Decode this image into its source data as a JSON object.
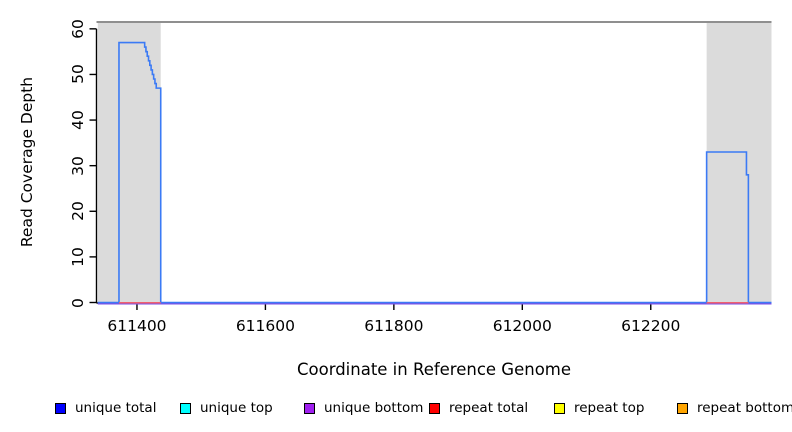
{
  "chart_data": {
    "type": "line",
    "title": "",
    "xlabel": "Coordinate in Reference Genome",
    "ylabel": "Read Coverage Depth",
    "xlim": [
      611337,
      612388
    ],
    "ylim": [
      0,
      61.5
    ],
    "xticks": [
      611400,
      611600,
      611800,
      612000,
      612200
    ],
    "yticks": [
      0,
      10,
      20,
      30,
      40,
      50,
      60
    ],
    "grid": false,
    "legend_position": "bottom",
    "colors": {
      "repeat_region_fill": "#dbdbdb",
      "ceiling_line": "#8f8f8f",
      "axis": "#000000"
    },
    "repeat_regions": [
      [
        611339,
        611437
      ],
      [
        612287,
        612388
      ]
    ],
    "ceiling_line_y": 61.5,
    "series": [
      {
        "name": "unique total",
        "legend_fill": "#0000ff",
        "line_color": "#3b7af5",
        "zorder": 5,
        "points": [
          [
            [
              611339,
              0
            ],
            [
              611372,
              0
            ],
            [
              611372,
              57
            ],
            [
              611412,
              57
            ],
            [
              611412,
              56
            ],
            [
              611414,
              56
            ],
            [
              611414,
              55
            ],
            [
              611416,
              55
            ],
            [
              611416,
              54
            ],
            [
              611418,
              54
            ],
            [
              611418,
              53
            ],
            [
              611420,
              53
            ],
            [
              611420,
              52
            ],
            [
              611422,
              52
            ],
            [
              611422,
              51
            ],
            [
              611424,
              51
            ],
            [
              611424,
              50
            ],
            [
              611426,
              50
            ],
            [
              611426,
              49
            ],
            [
              611428,
              49
            ],
            [
              611428,
              48
            ],
            [
              611430,
              48
            ],
            [
              611430,
              47
            ],
            [
              611437,
              47
            ],
            [
              611437,
              0
            ],
            [
              612287,
              0
            ],
            [
              612287,
              33
            ],
            [
              612349,
              33
            ],
            [
              612349,
              28
            ],
            [
              612352,
              28
            ],
            [
              612352,
              0
            ],
            [
              612388,
              0
            ]
          ]
        ]
      },
      {
        "name": "unique top",
        "legend_fill": "#00ffff",
        "line_color": "#19cfcf",
        "zorder": 3,
        "points": [
          [
            [
              611339,
              0
            ],
            [
              612388,
              0
            ]
          ]
        ]
      },
      {
        "name": "unique bottom",
        "legend_fill": "#a020f0",
        "line_color": "#7b52e6",
        "zorder": 4,
        "points": [
          [
            [
              611339,
              0
            ],
            [
              612388,
              0
            ]
          ]
        ]
      },
      {
        "name": "repeat total",
        "legend_fill": "#ff0000",
        "line_color": "#f0606e",
        "zorder": 6,
        "points": [
          [
            [
              611372,
              0
            ],
            [
              611437,
              0
            ]
          ],
          [
            [
              612287,
              0
            ],
            [
              612352,
              0
            ]
          ]
        ]
      },
      {
        "name": "repeat top",
        "legend_fill": "#ffff00",
        "line_color": "#e6e619",
        "zorder": 1,
        "points": [
          [
            [
              611372,
              0
            ],
            [
              611437,
              0
            ]
          ],
          [
            [
              612287,
              0
            ],
            [
              612352,
              0
            ]
          ]
        ]
      },
      {
        "name": "repeat bottom",
        "legend_fill": "#ffa500",
        "line_color": "#e69500",
        "zorder": 2,
        "points": [
          [
            [
              611372,
              0
            ],
            [
              611437,
              0
            ]
          ],
          [
            [
              612287,
              0
            ],
            [
              612352,
              0
            ]
          ]
        ]
      }
    ]
  }
}
